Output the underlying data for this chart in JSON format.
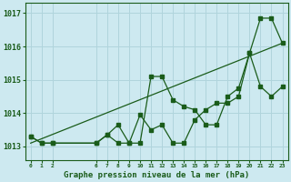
{
  "title": "Graphe pression niveau de la mer (hPa)",
  "background_color": "#cde9f0",
  "grid_color": "#b0d4dc",
  "line_color": "#1a5c1a",
  "xlim": [
    -0.5,
    23.5
  ],
  "ylim": [
    1012.6,
    1017.3
  ],
  "yticks": [
    1013,
    1014,
    1015,
    1016,
    1017
  ],
  "xtick_positions": [
    0,
    1,
    2,
    6,
    7,
    8,
    9,
    10,
    11,
    12,
    13,
    14,
    15,
    16,
    17,
    18,
    19,
    20,
    21,
    22,
    23
  ],
  "xtick_labels": [
    "0",
    "1",
    "2",
    "6",
    "7",
    "8",
    "9",
    "10",
    "11",
    "12",
    "13",
    "14",
    "15",
    "16",
    "17",
    "18",
    "19",
    "20",
    "21",
    "22",
    "23"
  ],
  "hours_jagged1": [
    0,
    1,
    2,
    6,
    7,
    8,
    9,
    10,
    11,
    12,
    13,
    14,
    15,
    16,
    17,
    18,
    19,
    20,
    21,
    22,
    23
  ],
  "series_jagged1": [
    1013.3,
    1013.1,
    1013.1,
    1013.1,
    1013.35,
    1013.65,
    1013.1,
    1013.1,
    1015.1,
    1015.1,
    1014.4,
    1014.2,
    1014.1,
    1013.65,
    1013.65,
    1014.5,
    1014.75,
    1015.8,
    1016.85,
    1016.85,
    1016.1
  ],
  "hours_jagged2": [
    0,
    1,
    2,
    6,
    7,
    8,
    9,
    10,
    11,
    12,
    13,
    14,
    15,
    16,
    17,
    18,
    19,
    20,
    21,
    22,
    23
  ],
  "series_jagged2": [
    1013.3,
    1013.1,
    1013.1,
    1013.1,
    1013.35,
    1013.1,
    1013.1,
    1013.95,
    1013.5,
    1013.65,
    1013.1,
    1013.1,
    1013.8,
    1014.1,
    1014.3,
    1014.3,
    1014.5,
    1015.8,
    1014.8,
    1014.5,
    1014.8
  ],
  "trend_x": [
    0,
    23
  ],
  "trend_y": [
    1013.1,
    1016.1
  ]
}
